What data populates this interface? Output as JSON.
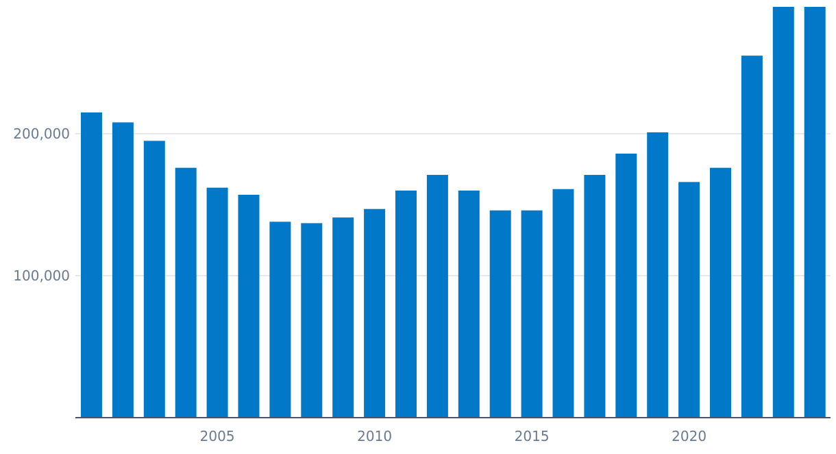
{
  "chart_data": {
    "type": "bar",
    "title": "",
    "xlabel": "",
    "ylabel": "",
    "categories": [
      2001,
      2002,
      2003,
      2004,
      2005,
      2006,
      2007,
      2008,
      2009,
      2010,
      2011,
      2012,
      2013,
      2014,
      2015,
      2016,
      2017,
      2018,
      2019,
      2020,
      2021,
      2022,
      2023,
      2024
    ],
    "values": [
      215000,
      208000,
      195000,
      176000,
      162000,
      157000,
      138000,
      137000,
      141000,
      147000,
      160000,
      171000,
      160000,
      146000,
      146000,
      161000,
      171000,
      186000,
      201000,
      166000,
      176000,
      255000,
      290000,
      290000
    ],
    "ylim": [
      0,
      290000
    ],
    "y_ticks": [
      100000,
      200000
    ],
    "y_tick_labels": [
      "100,000",
      "200,000"
    ],
    "x_ticks": [
      2005,
      2010,
      2015,
      2020
    ],
    "x_tick_labels": [
      "2005",
      "2010",
      "2015",
      "2020"
    ],
    "grid": "horizontal",
    "legend": "none",
    "bar_color": "#0179c8",
    "grid_color": "#d6dbe2",
    "axis_color": "#4a5568",
    "tick_label_color": "#6b7a90"
  }
}
